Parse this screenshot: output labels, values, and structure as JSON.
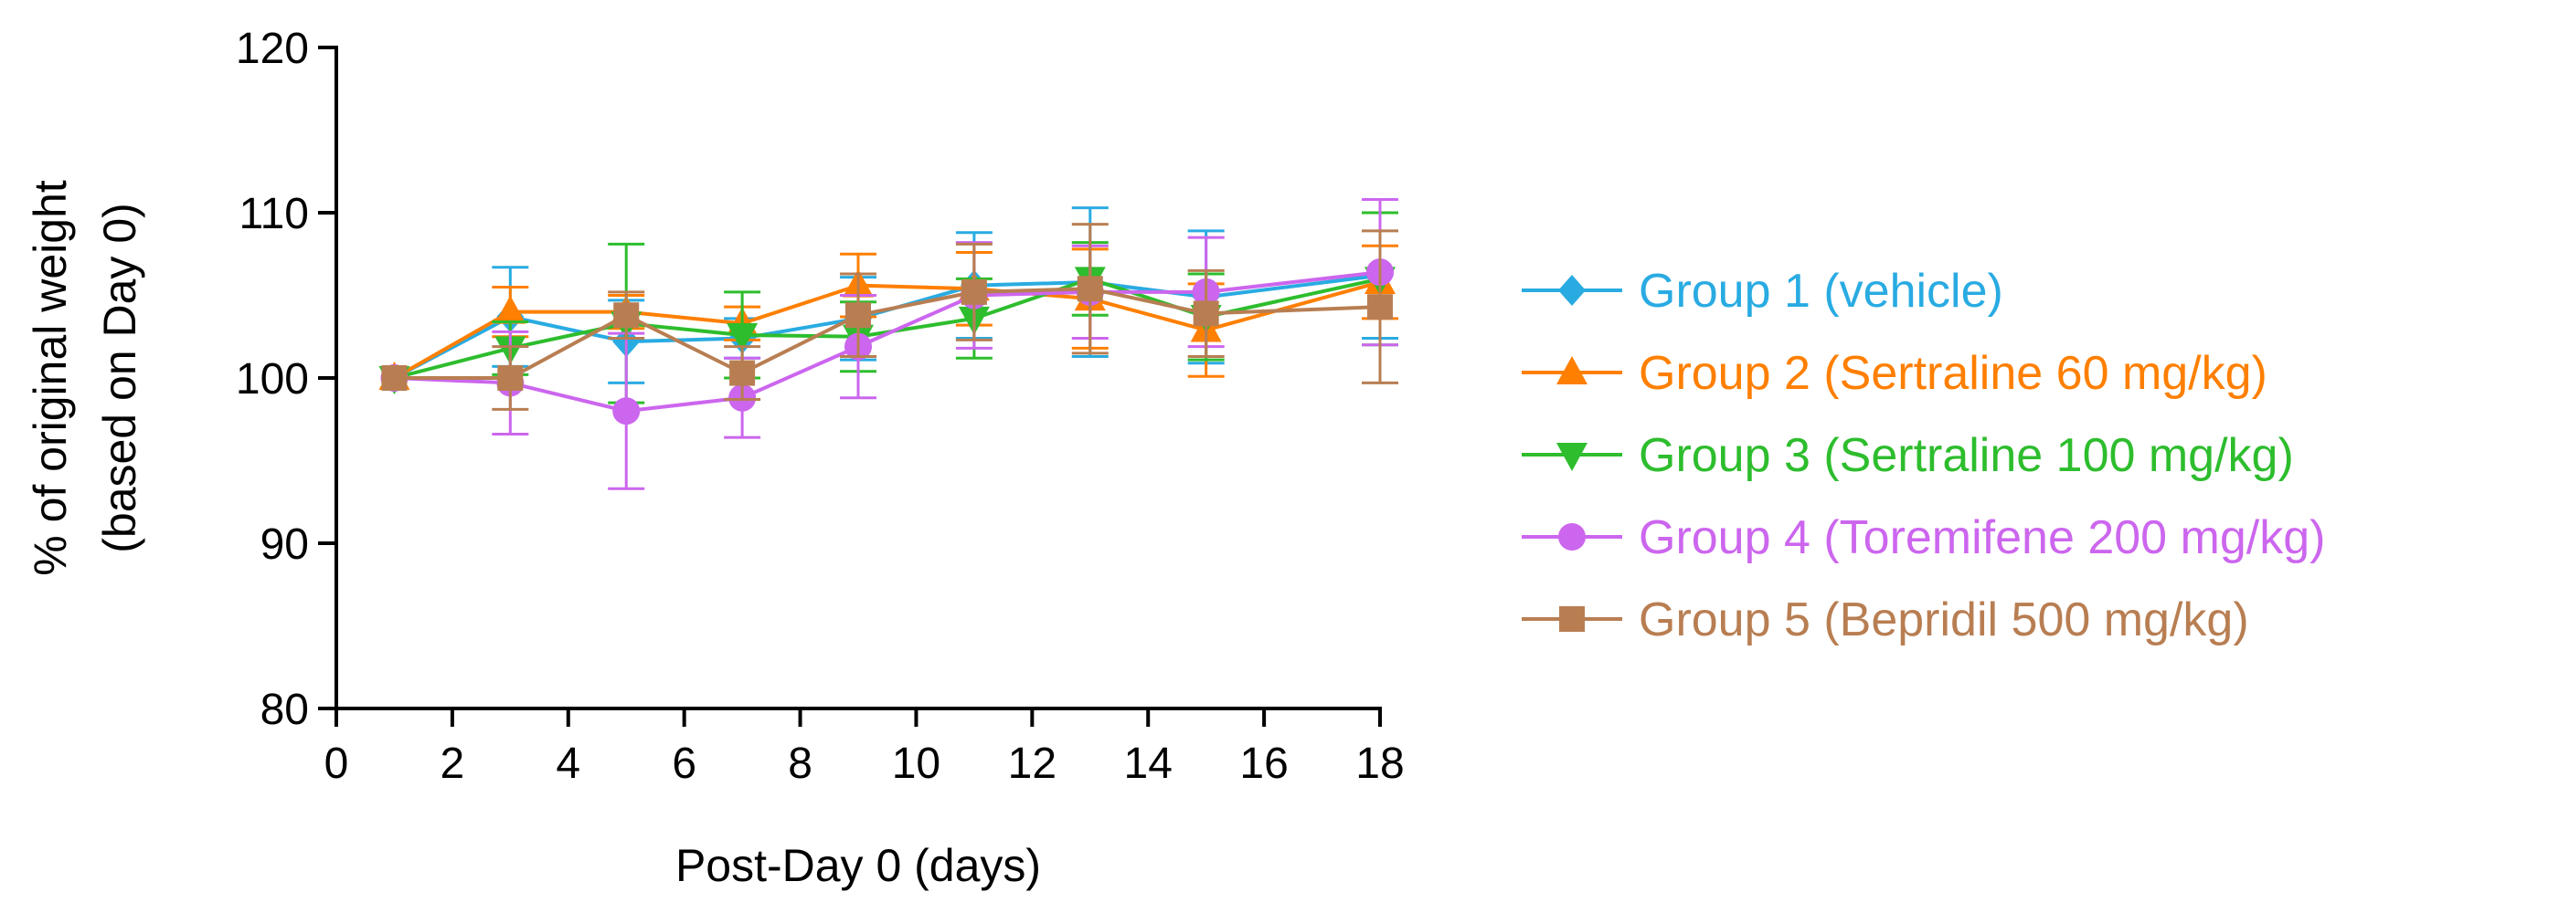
{
  "chart_data": {
    "type": "line",
    "title": "",
    "xlabel": "Post-Day 0 (days)",
    "ylabel": [
      "% of original weight",
      "(based on Day 0)"
    ],
    "xlim": [
      0,
      18
    ],
    "ylim": [
      80,
      120
    ],
    "xticks": [
      0,
      2,
      4,
      6,
      8,
      10,
      12,
      14,
      16,
      18
    ],
    "yticks": [
      80,
      90,
      100,
      110,
      120
    ],
    "grid": false,
    "legend_position": "right",
    "x": [
      1,
      3,
      5,
      7,
      9,
      11,
      13,
      15,
      18
    ],
    "series": [
      {
        "name": "Group 1 (vehicle)",
        "color": "#29abe2",
        "marker": "diamond",
        "values": [
          100,
          103.7,
          102.2,
          102.4,
          103.6,
          105.6,
          105.8,
          104.9,
          106.2
        ],
        "errors": [
          0,
          3.0,
          2.5,
          1.2,
          2.5,
          3.2,
          4.5,
          4.0,
          3.8
        ]
      },
      {
        "name": "Group 2 (Sertraline 60 mg/kg)",
        "color": "#ff7f00",
        "marker": "triangle-up",
        "values": [
          100,
          104.0,
          104.0,
          103.3,
          105.6,
          105.4,
          104.8,
          102.9,
          105.8
        ],
        "errors": [
          0,
          1.5,
          1.0,
          1.0,
          1.9,
          2.2,
          3.0,
          2.8,
          2.2
        ]
      },
      {
        "name": "Group 3 (Sertraline 100 mg/kg)",
        "color": "#2dbd2d",
        "marker": "triangle-down",
        "values": [
          100,
          101.8,
          103.3,
          102.6,
          102.5,
          103.6,
          106.0,
          103.7,
          106.0
        ],
        "errors": [
          0,
          1.6,
          4.8,
          2.6,
          2.1,
          2.4,
          2.2,
          2.6,
          4.0
        ]
      },
      {
        "name": "Group 4 (Toremifene 200 mg/kg)",
        "color": "#cc66ee",
        "marker": "circle",
        "values": [
          100,
          99.7,
          98.0,
          98.8,
          101.9,
          105.0,
          105.2,
          105.2,
          106.4
        ],
        "errors": [
          0,
          3.1,
          4.7,
          2.4,
          3.1,
          3.2,
          2.8,
          3.3,
          4.4
        ]
      },
      {
        "name": "Group 5 (Bepridil 500 mg/kg)",
        "color": "#b87e52",
        "marker": "square",
        "values": [
          100,
          100.0,
          103.8,
          100.3,
          103.8,
          105.2,
          105.4,
          103.9,
          104.3
        ],
        "errors": [
          0,
          1.9,
          1.4,
          1.6,
          2.5,
          2.9,
          3.9,
          2.6,
          4.6
        ]
      }
    ]
  }
}
